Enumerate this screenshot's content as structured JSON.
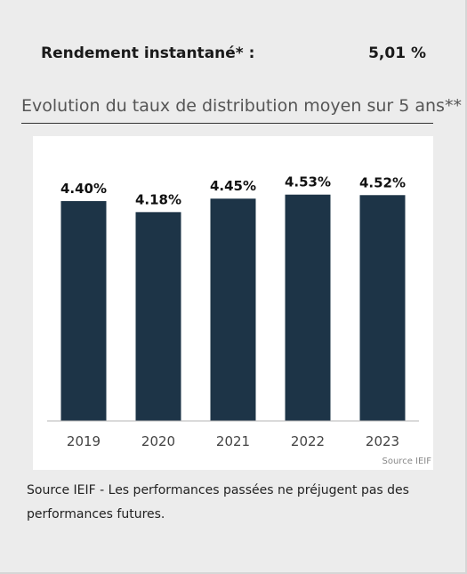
{
  "yield": {
    "label": "Rendement instantané* :",
    "value": "5,01 %"
  },
  "section_title": "Evolution du taux de distribution moyen sur 5 ans**",
  "chart_data": {
    "type": "bar",
    "title": "",
    "xlabel": "",
    "ylabel": "",
    "categories": [
      "2019",
      "2020",
      "2021",
      "2022",
      "2023"
    ],
    "values": [
      4.4,
      4.18,
      4.45,
      4.53,
      4.52
    ],
    "value_labels": [
      "4.40%",
      "4.18%",
      "4.45%",
      "4.53%",
      "4.52%"
    ],
    "ylim": [
      0,
      4.95
    ],
    "grid": false,
    "bar_color": "#1d3447",
    "source": "Source IEIF"
  },
  "footnote": "Source IEIF - Les performances passées ne préjugent pas des performances futures."
}
